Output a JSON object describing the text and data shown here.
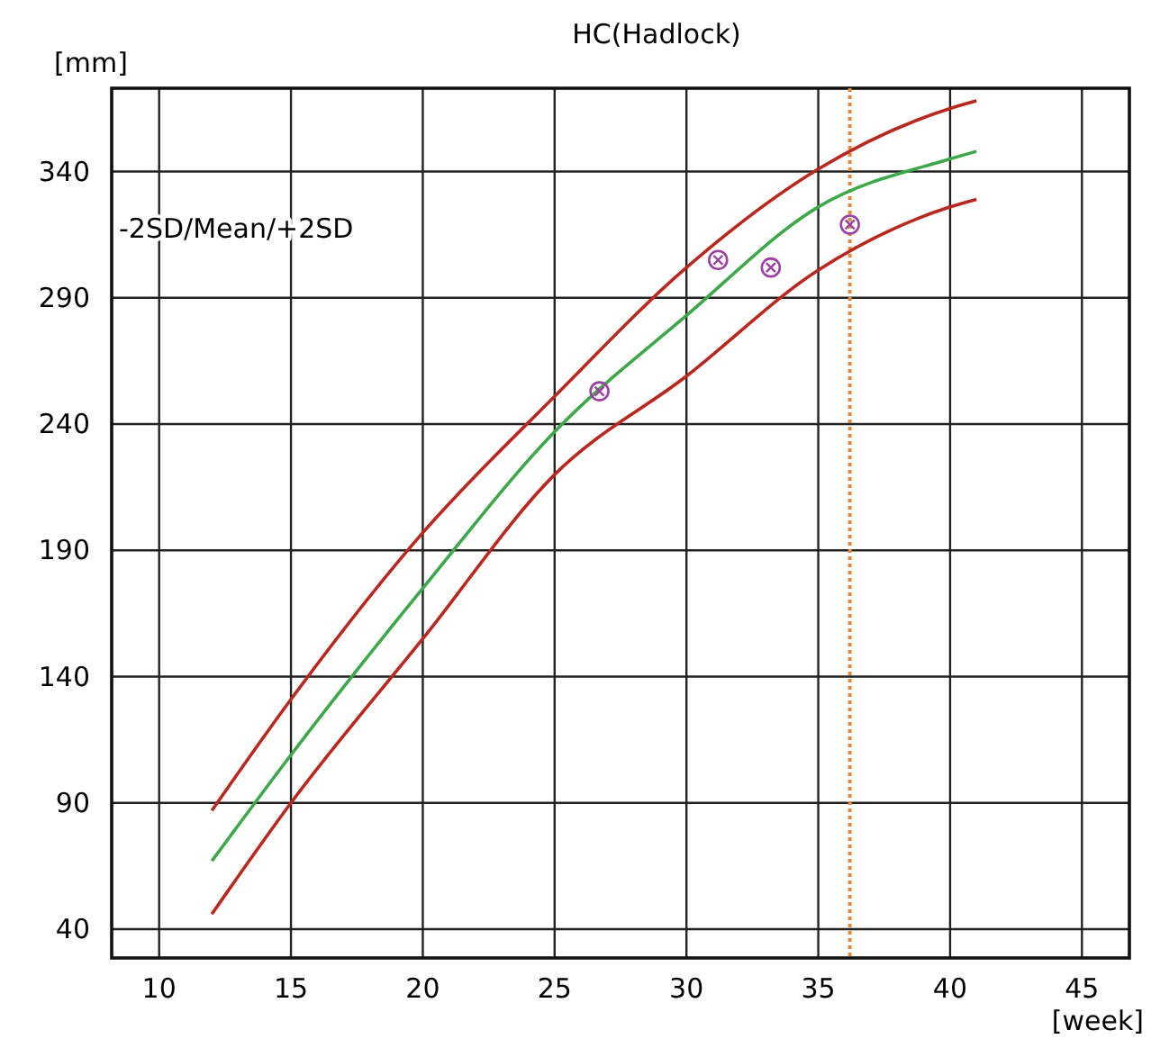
{
  "chart_data": {
    "type": "line",
    "title": "HC(Hadlock)",
    "xlabel": "[week]",
    "ylabel": "[mm]",
    "annotations": [
      "-2SD/Mean/+2SD"
    ],
    "series": [
      {
        "color": "#b8281e",
        "x": [
          12,
          15,
          20,
          25,
          30,
          35,
          40,
          41
        ],
        "values": [
          87,
          131,
          197,
          251,
          302,
          341,
          365,
          368
        ]
      },
      {
        "color": "#3da84a",
        "x": [
          12,
          15,
          20,
          25,
          30,
          35,
          40,
          41
        ],
        "values": [
          67,
          109,
          175,
          237,
          283,
          326,
          345,
          348
        ]
      },
      {
        "color": "#b8281e",
        "x": [
          12,
          15,
          20,
          25,
          30,
          35,
          40,
          41
        ],
        "values": [
          46,
          90,
          155,
          220,
          259,
          301,
          326,
          329
        ]
      },
      {
        "type": "scatter",
        "color": "#9b3fa0",
        "marker": "circle",
        "x": [
          26.7,
          31.2,
          33.2,
          36.2
        ],
        "values": [
          253,
          305,
          302,
          319
        ]
      }
    ],
    "xlim": [
      8.2,
      46.8
    ],
    "xticks": [
      10,
      15,
      20,
      25,
      30,
      35,
      40,
      45
    ],
    "ylim": [
      28.6,
      373
    ],
    "yticks": [
      40,
      90,
      140,
      190,
      240,
      290,
      340
    ],
    "ref_lines": [
      {
        "axis": "x",
        "value": 36.2,
        "color": "#e08a3c",
        "line_style": "dotted"
      }
    ],
    "grid": true,
    "marker": "none",
    "line_style": "solid"
  }
}
